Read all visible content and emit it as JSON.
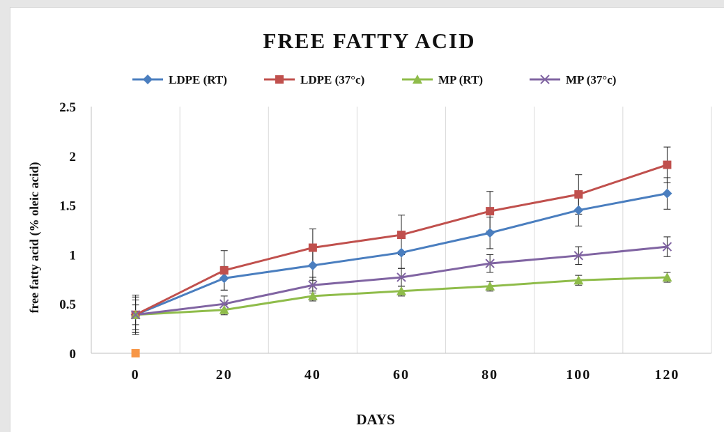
{
  "chart_data": {
    "type": "line",
    "title": "FREE FATTY ACID",
    "xlabel": "DAYS",
    "ylabel": "free fatty acid (% oleic acid)",
    "x": [
      0,
      20,
      40,
      60,
      80,
      100,
      120
    ],
    "x_tick_labels": [
      "0",
      "20",
      "40",
      "60",
      "80",
      "100",
      "120"
    ],
    "y_tick_labels": [
      "0",
      "0.5",
      "1",
      "1.5",
      "2",
      "2.5"
    ],
    "ylim": [
      0,
      2.5
    ],
    "grid": "vertical",
    "legend_position": "top",
    "series": [
      {
        "name": "LDPE (RT)",
        "color": "#4a7ebf",
        "marker": "diamond",
        "values": [
          0.39,
          0.76,
          0.89,
          1.02,
          1.22,
          1.45,
          1.62
        ],
        "errors": [
          0.18,
          0.12,
          0.15,
          0.16,
          0.16,
          0.16,
          0.16
        ]
      },
      {
        "name": "LDPE (37°c)",
        "color": "#c0504d",
        "marker": "square",
        "values": [
          0.39,
          0.84,
          1.07,
          1.2,
          1.44,
          1.61,
          1.91
        ],
        "errors": [
          0.2,
          0.2,
          0.19,
          0.2,
          0.2,
          0.2,
          0.18
        ]
      },
      {
        "name": "MP (RT)",
        "color": "#8fbc4a",
        "marker": "triangle",
        "values": [
          0.39,
          0.44,
          0.58,
          0.63,
          0.68,
          0.74,
          0.77
        ],
        "errors": [
          0.1,
          0.05,
          0.05,
          0.05,
          0.05,
          0.05,
          0.05
        ]
      },
      {
        "name": "MP (37°c)",
        "color": "#8064a2",
        "marker": "x",
        "values": [
          0.39,
          0.5,
          0.69,
          0.77,
          0.91,
          0.99,
          1.08
        ],
        "errors": [
          0.15,
          0.08,
          0.08,
          0.09,
          0.09,
          0.09,
          0.1
        ]
      }
    ],
    "extra_points": [
      {
        "x": 0,
        "y": 0,
        "color": "#f79646",
        "marker": "square"
      }
    ]
  }
}
